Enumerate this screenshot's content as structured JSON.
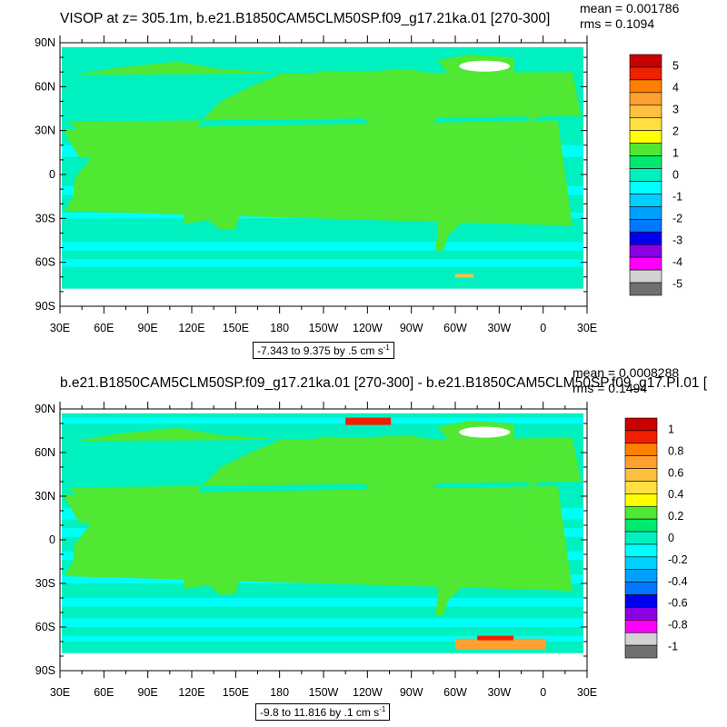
{
  "chart_data": [
    {
      "type": "heatmap",
      "title": "VISOP at z= 305.1m, b.e21.B1850CAM5CLM50SP.f09_g17.21ka.01 [270-300]",
      "mean_label": "mean = 0.001786",
      "rms_label": "rms = 0.1094",
      "contour_info": "-7.343 to 9.375 by .5 cm s",
      "contour_unit_exp": "-1",
      "lat_ticks": [
        "90N",
        "60N",
        "30N",
        "0",
        "30S",
        "60S",
        "90S"
      ],
      "lon_ticks": [
        "30E",
        "60E",
        "90E",
        "120E",
        "150E",
        "180",
        "150W",
        "120W",
        "90W",
        "60W",
        "30W",
        "0",
        "30E"
      ],
      "colorbar_labels": [
        "5",
        "4",
        "3",
        "2",
        "1",
        "0",
        "-1",
        "-2",
        "-3",
        "-4",
        "-5"
      ],
      "colors": [
        "#c80000",
        "#ef2000",
        "#ff8000",
        "#ffa030",
        "#ffc040",
        "#ffe040",
        "#ffff00",
        "#50e832",
        "#00ea70",
        "#00f0c0",
        "#00ffff",
        "#00d0ff",
        "#00a0ff",
        "#0078ff",
        "#0000f0",
        "#8a00e0",
        "#ff00ff",
        "#d2d2d2",
        "#707070"
      ]
    },
    {
      "type": "heatmap",
      "title": "b.e21.B1850CAM5CLM50SP.f09_g17.21ka.01 [270-300] - b.e21.B1850CAM5CLM50SP.f09_g17.PI.01 [",
      "mean_label": "mean = 0.0008288",
      "rms_label": "rms = 0.1494",
      "contour_info": "-9.8 to 11.816 by .1 cm s",
      "contour_unit_exp": "-1",
      "lat_ticks": [
        "90N",
        "60N",
        "30N",
        "0",
        "30S",
        "60S",
        "90S"
      ],
      "lon_ticks": [
        "30E",
        "60E",
        "90E",
        "120E",
        "150E",
        "180",
        "150W",
        "120W",
        "90W",
        "60W",
        "30W",
        "0",
        "30E"
      ],
      "colorbar_labels": [
        "1",
        "0.8",
        "0.6",
        "0.4",
        "0.2",
        "0",
        "-0.2",
        "-0.4",
        "-0.6",
        "-0.8",
        "-1"
      ],
      "colors": [
        "#c80000",
        "#ef2000",
        "#ff8000",
        "#ffa030",
        "#ffc040",
        "#ffe040",
        "#ffff00",
        "#50e832",
        "#00ea70",
        "#00f0c0",
        "#00ffff",
        "#00d0ff",
        "#00a0ff",
        "#0078ff",
        "#0000f0",
        "#8a00e0",
        "#ff00ff",
        "#d2d2d2",
        "#707070"
      ]
    }
  ]
}
